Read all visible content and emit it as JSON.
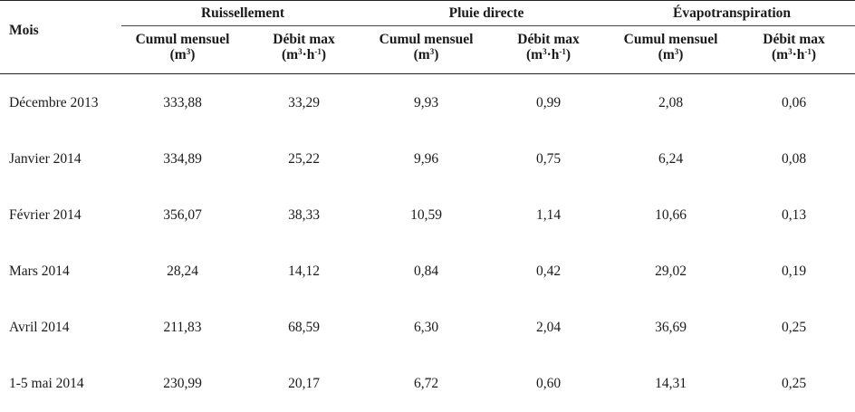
{
  "table": {
    "mois_label": "Mois",
    "groups": [
      {
        "title": "Ruissellement"
      },
      {
        "title": "Pluie directe"
      },
      {
        "title": "Évapotranspiration"
      }
    ],
    "sub": {
      "cumul": "Cumul mensuel",
      "debit": "Débit max",
      "unit_cumul_base": "(m",
      "unit_cumul_exp": "3",
      "unit_cumul_end": ")",
      "unit_debit_base": "(m",
      "unit_debit_exp": "3",
      "unit_debit_mid": "·h",
      "unit_debit_exp2": "-1",
      "unit_debit_end": ")"
    },
    "rows": [
      {
        "mois": "Décembre 2013",
        "v": [
          "333,88",
          "33,29",
          "9,93",
          "0,99",
          "2,08",
          "0,06"
        ]
      },
      {
        "mois": "Janvier 2014",
        "v": [
          "334,89",
          "25,22",
          "9,96",
          "0,75",
          "6,24",
          "0,08"
        ]
      },
      {
        "mois": "Février 2014",
        "v": [
          "356,07",
          "38,33",
          "10,59",
          "1,14",
          "10,66",
          "0,13"
        ]
      },
      {
        "mois": "Mars 2014",
        "v": [
          "28,24",
          "14,12",
          "0,84",
          "0,42",
          "29,02",
          "0,19"
        ]
      },
      {
        "mois": "Avril 2014",
        "v": [
          "211,83",
          "68,59",
          "6,30",
          "2,04",
          "36,69",
          "0,25"
        ]
      },
      {
        "mois": "1-5 mai 2014",
        "v": [
          "230,99",
          "20,17",
          "6,72",
          "0,60",
          "14,31",
          "0,25"
        ]
      }
    ]
  }
}
